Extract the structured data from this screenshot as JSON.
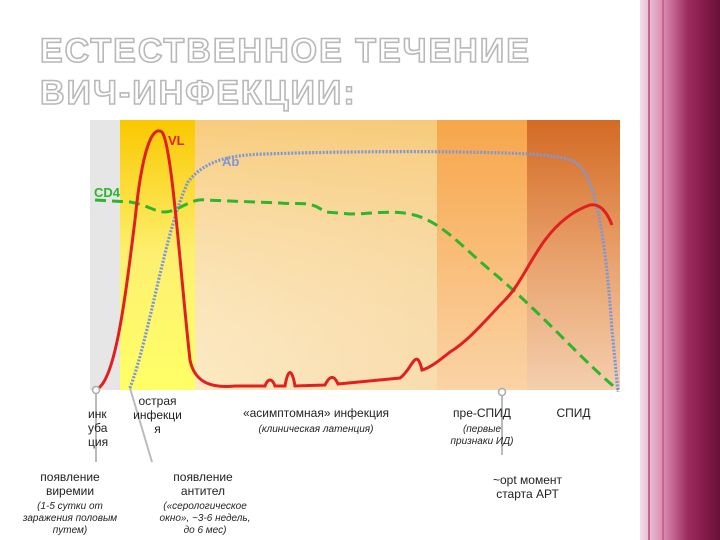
{
  "title": "ЕСТЕСТВЕННОЕ ТЕЧЕНИЕ ВИЧ-ИНФЕКЦИИ:",
  "series_labels": {
    "vl": "VL",
    "ab": "Ab",
    "cd4": "CD4"
  },
  "colors": {
    "vl": "#e02020",
    "ab": "#7f97d6",
    "cd4": "#2db52d"
  },
  "phases": {
    "incubation": "инк\nуба\nция",
    "acute": "острая\nинфекци\nя",
    "asymptomatic": "«асимптомная» инфекция",
    "asymptomatic_note": "(клиническая латенция)",
    "pre_aids": "пре-СПИД",
    "pre_aids_note": "(первые\nпризнаки ИД)",
    "aids": "СПИД"
  },
  "annotations": {
    "viremia": "появление\nвиремии",
    "viremia_note": "(1-5 сутки от\nзаражения половым\nпутем)",
    "antibodies": "появление\nантител",
    "antibodies_note": "(«серологическое\nокно», ~3-6 недель,\nдо 6 мес)",
    "art": "~opt момент\nстарта АРТ"
  }
}
